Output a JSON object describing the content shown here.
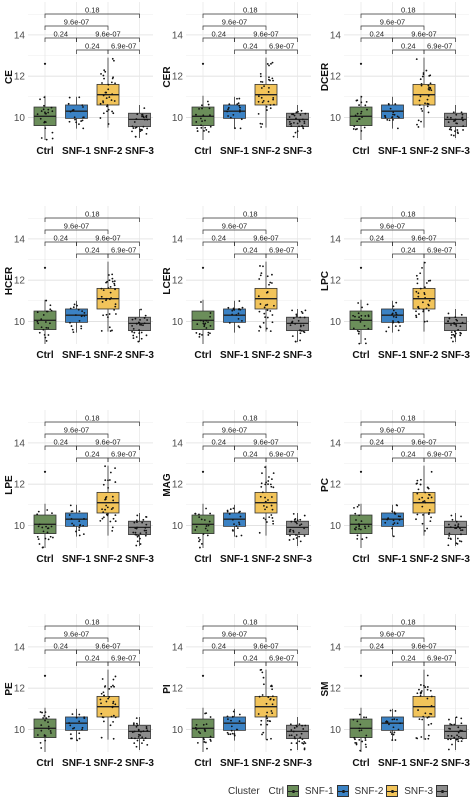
{
  "chart_data": {
    "type": "box",
    "ylim": [
      8.9,
      15.6
    ],
    "yticks": [
      10,
      12,
      14
    ],
    "categories": [
      "Ctrl",
      "SNF-1",
      "SNF-2",
      "SNF-3"
    ],
    "legend": {
      "title": "Cluster",
      "items": [
        "Ctrl",
        "SNF-1",
        "SNF-2",
        "SNF-3"
      ],
      "position": "bottom"
    },
    "colors": {
      "Ctrl": "#6b8e5a",
      "SNF-1": "#3b82c4",
      "SNF-2": "#f2c45a",
      "SNF-3": "#8c8c8c"
    },
    "groups": {
      "Ctrl": {
        "q1": 9.6,
        "median": 10.05,
        "q3": 10.5,
        "lower": 8.9,
        "upper": 11.05,
        "outliers": [
          12.6
        ],
        "n": 22
      },
      "SNF-1": {
        "q1": 9.95,
        "median": 10.3,
        "q3": 10.6,
        "lower": 9.45,
        "upper": 11.0,
        "outliers": [],
        "n": 18
      },
      "SNF-2": {
        "q1": 10.6,
        "median": 11.1,
        "q3": 11.6,
        "lower": 9.5,
        "upper": 12.9,
        "outliers": [],
        "n": 34
      },
      "SNF-3": {
        "q1": 9.55,
        "median": 9.9,
        "q3": 10.2,
        "lower": 9.0,
        "upper": 10.6,
        "outliers": [],
        "n": 28
      }
    },
    "comparisons": [
      {
        "pair": [
          "Ctrl",
          "SNF-1"
        ],
        "p": "0.24",
        "level": 1
      },
      {
        "pair": [
          "SNF-1",
          "SNF-2"
        ],
        "p": "0.24",
        "level": 0
      },
      {
        "pair": [
          "SNF-2",
          "SNF-3"
        ],
        "p": "6.9e-07",
        "level": 0
      },
      {
        "pair": [
          "SNF-1",
          "SNF-3"
        ],
        "p": "9.6e-07",
        "level": 1
      },
      {
        "pair": [
          "Ctrl",
          "SNF-2"
        ],
        "p": "9.6e-07",
        "level": 2
      },
      {
        "pair": [
          "Ctrl",
          "SNF-3"
        ],
        "p": "0.18",
        "level": 3
      }
    ],
    "panels": [
      {
        "ylabel": "CE"
      },
      {
        "ylabel": "CER"
      },
      {
        "ylabel": "DCER"
      },
      {
        "ylabel": "HCER"
      },
      {
        "ylabel": "LCER"
      },
      {
        "ylabel": "LPC"
      },
      {
        "ylabel": "LPE"
      },
      {
        "ylabel": "MAG"
      },
      {
        "ylabel": "PC"
      },
      {
        "ylabel": "PE"
      },
      {
        "ylabel": "PI"
      },
      {
        "ylabel": "SM"
      }
    ]
  }
}
